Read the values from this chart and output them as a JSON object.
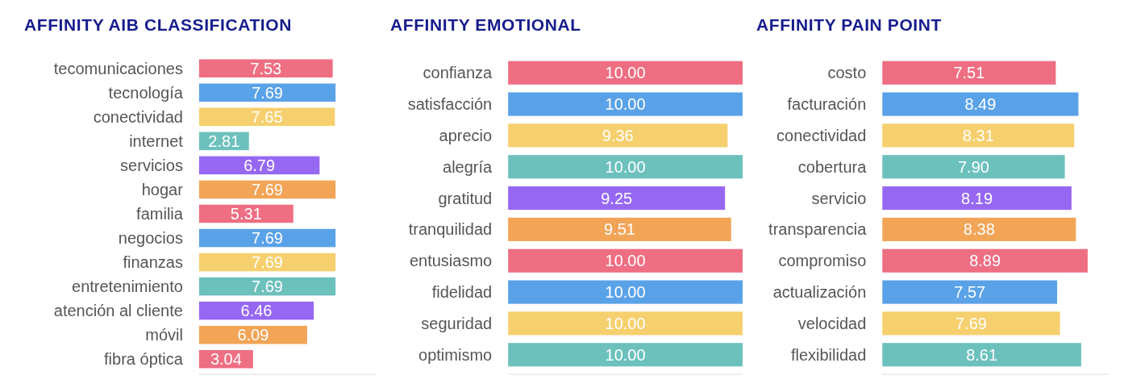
{
  "chart_data": [
    {
      "type": "bar",
      "orientation": "horizontal",
      "title": "AFFINITY AIB CLASSIFICATION",
      "categories": [
        "tecomunicaciones",
        "tecnología",
        "conectividad",
        "internet",
        "servicios",
        "hogar",
        "familia",
        "negocios",
        "finanzas",
        "entretenimiento",
        "atención al cliente",
        "móvil",
        "fibra óptica"
      ],
      "values": [
        7.53,
        7.69,
        7.65,
        2.81,
        6.79,
        7.69,
        5.31,
        7.69,
        7.69,
        7.69,
        6.46,
        6.09,
        3.04
      ],
      "colors": [
        "#ee6e82",
        "#5aa2e8",
        "#f6d06e",
        "#6cc1bd",
        "#9668f2",
        "#f2a457",
        "#ee6e82",
        "#5aa2e8",
        "#f6d06e",
        "#6cc1bd",
        "#9668f2",
        "#f2a457",
        "#ee6e82"
      ],
      "xlim": [
        0,
        10
      ],
      "data_labels": true,
      "tick_labels": "y"
    },
    {
      "type": "bar",
      "orientation": "horizontal",
      "title": "AFFINITY EMOTIONAL",
      "categories": [
        "confianza",
        "satisfacción",
        "aprecio",
        "alegría",
        "gratitud",
        "tranquilidad",
        "entusiasmo",
        "fidelidad",
        "seguridad",
        "optimismo"
      ],
      "values": [
        10.0,
        10.0,
        9.36,
        10.0,
        9.25,
        9.51,
        10.0,
        10.0,
        10.0,
        10.0
      ],
      "value_labels": [
        "10.00",
        "10.00",
        "9.36",
        "10.00",
        "9.25",
        "9.51",
        "10.00",
        "10.00",
        "10.00",
        "10.00"
      ],
      "colors": [
        "#ee6e82",
        "#5aa2e8",
        "#f6d06e",
        "#6cc1bd",
        "#9668f2",
        "#f2a457",
        "#ee6e82",
        "#5aa2e8",
        "#f6d06e",
        "#6cc1bd"
      ],
      "xlim": [
        0,
        10
      ],
      "tick_labels": "y"
    },
    {
      "type": "bar",
      "orientation": "horizontal",
      "title": "AFFINITY PAIN POINT",
      "categories": [
        "costo",
        "facturación",
        "conectividad",
        "cobertura",
        "servicio",
        "transparencia",
        "compromiso",
        "actualización",
        "velocidad",
        "flexibilidad"
      ],
      "values": [
        7.51,
        8.49,
        8.31,
        7.9,
        8.19,
        8.38,
        8.89,
        7.57,
        7.69,
        8.61
      ],
      "value_labels": [
        "7.51",
        "8.49",
        "8.31",
        "7.90",
        "8.19",
        "8.38",
        "8.89",
        "7.57",
        "7.69",
        "8.61"
      ],
      "colors": [
        "#ee6e82",
        "#5aa2e8",
        "#f6d06e",
        "#6cc1bd",
        "#9668f2",
        "#f2a457",
        "#ee6e82",
        "#5aa2e8",
        "#f6d06e",
        "#6cc1bd"
      ],
      "xlim": [
        0,
        9.8
      ],
      "tick_labels": "y"
    }
  ]
}
